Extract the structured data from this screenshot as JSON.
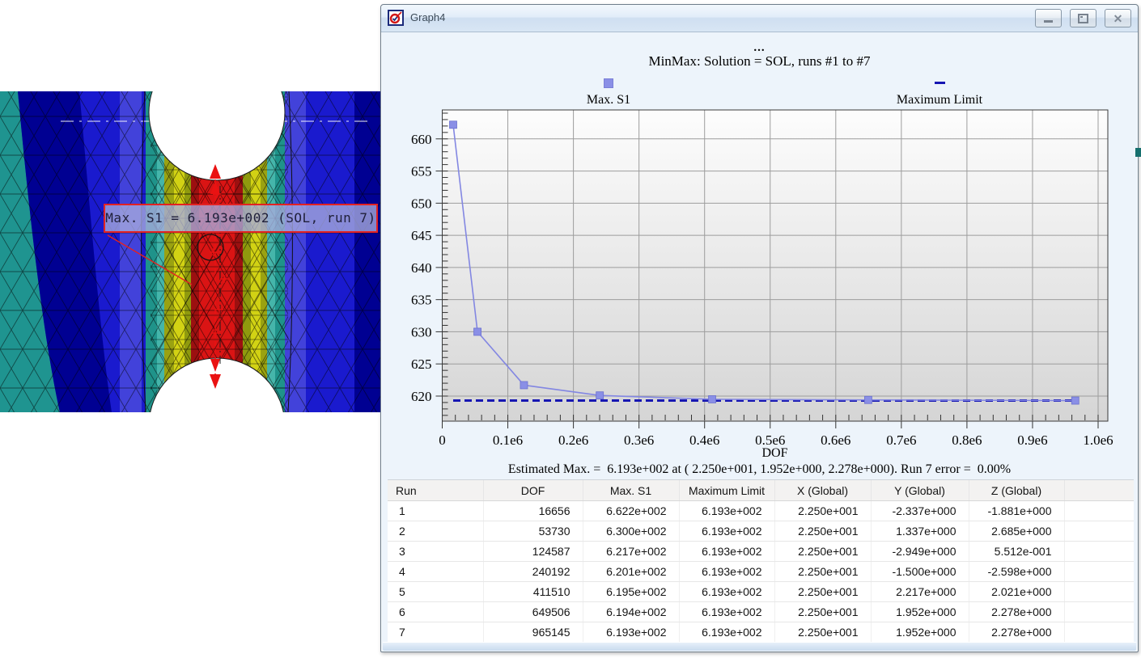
{
  "window": {
    "title": "Graph4"
  },
  "fea": {
    "annotation": "Max. S1 =  6.193e+002 (SOL, run 7)"
  },
  "chart": {
    "overtitle": "...",
    "title": "MinMax: Solution = SOL, runs #1 to #7",
    "footer": "Estimated Max. =  6.193e+002 at ( 2.250e+001, 1.952e+000, 2.278e+000). Run 7 error =  0.00%"
  },
  "chart_data": {
    "type": "line",
    "title": "MinMax: Solution = SOL, runs #1 to #7",
    "xlabel": "DOF",
    "ylabel": "",
    "series": [
      {
        "name": "Max. S1",
        "marker": "square",
        "color": "#8a8fe6",
        "line_color": "#8387e2",
        "x": [
          16656,
          53730,
          124587,
          240192,
          411510,
          649506,
          965145
        ],
        "y": [
          662.2,
          630.0,
          621.7,
          620.1,
          619.5,
          619.4,
          619.3
        ]
      },
      {
        "name": "Maximum Limit",
        "style": "dashed-hline",
        "color": "#1616b2",
        "y": 619.3,
        "x_start": 16656,
        "x_end": 965145
      }
    ],
    "xlim": [
      0,
      1014800
    ],
    "ylim": [
      616.1,
      664.5
    ],
    "xticks": {
      "step": 100000,
      "minor_step": 20000,
      "labels": [
        "0",
        "0.1e6",
        "0.2e6",
        "0.3e6",
        "0.4e6",
        "0.5e6",
        "0.6e6",
        "0.7e6",
        "0.8e6",
        "0.9e6",
        "1.0e6"
      ]
    },
    "yticks": {
      "start": 620,
      "end": 660,
      "step": 5,
      "minor_start": 617,
      "minor_end": 664,
      "minor_step": 1
    },
    "grid": true,
    "legend_position": "top"
  },
  "table": {
    "headers": [
      "Run",
      "DOF",
      "Max. S1",
      "Maximum Limit",
      "X (Global)",
      "Y (Global)",
      "Z (Global)"
    ],
    "rows": [
      [
        "1",
        "16656",
        "6.622e+002",
        "6.193e+002",
        "2.250e+001",
        "-2.337e+000",
        "-1.881e+000"
      ],
      [
        "2",
        "53730",
        "6.300e+002",
        "6.193e+002",
        "2.250e+001",
        "1.337e+000",
        "2.685e+000"
      ],
      [
        "3",
        "124587",
        "6.217e+002",
        "6.193e+002",
        "2.250e+001",
        "-2.949e+000",
        "5.512e-001"
      ],
      [
        "4",
        "240192",
        "6.201e+002",
        "6.193e+002",
        "2.250e+001",
        "-1.500e+000",
        "-2.598e+000"
      ],
      [
        "5",
        "411510",
        "6.195e+002",
        "6.193e+002",
        "2.250e+001",
        "2.217e+000",
        "2.021e+000"
      ],
      [
        "6",
        "649506",
        "6.194e+002",
        "6.193e+002",
        "2.250e+001",
        "1.952e+000",
        "2.278e+000"
      ],
      [
        "7",
        "965145",
        "6.193e+002",
        "6.193e+002",
        "2.250e+001",
        "1.952e+000",
        "2.278e+000"
      ]
    ]
  },
  "colors": {
    "titlebar_bg": "#dce9f7",
    "content_bg": "#edf4fb",
    "plot_bg_top": "#fdfdfd",
    "plot_bg_bottom": "#d5d5d5",
    "grid": "#9d9d9d",
    "table_header_bg": "#f3f2f1",
    "stress_min": "#000092",
    "stress_max": "#da1414"
  }
}
